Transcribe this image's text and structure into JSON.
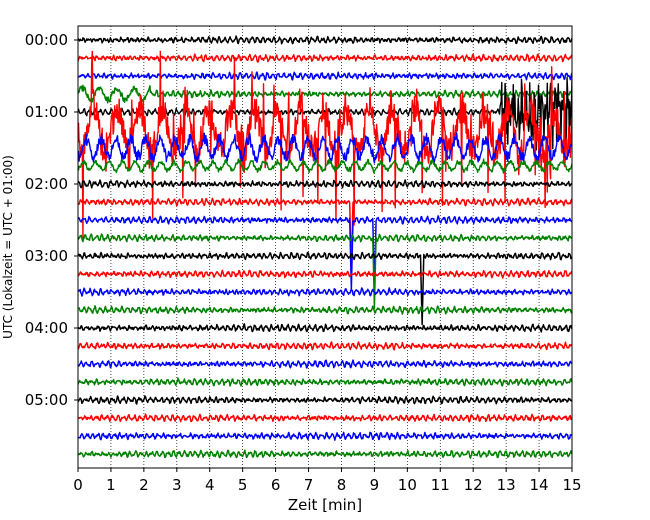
{
  "chart_data": {
    "type": "line",
    "title": "",
    "xlabel": "Zeit  [min]",
    "ylabel": "UTC (Lokalzeit = UTC + 01:00)",
    "xlim": [
      0,
      15
    ],
    "x_ticks": [
      0,
      1,
      2,
      3,
      4,
      5,
      6,
      7,
      8,
      9,
      10,
      11,
      12,
      13,
      14,
      15
    ],
    "y_tick_labels": [
      "00:00",
      "01:00",
      "02:00",
      "03:00",
      "04:00",
      "05:00"
    ],
    "y_tick_rows": [
      0,
      4,
      8,
      12,
      16,
      20
    ],
    "grid": "vertical dotted",
    "row_colors": [
      "#000000",
      "#ff0000",
      "#0000ff",
      "#008000"
    ],
    "rows": 24,
    "row_interval_minutes": 15,
    "events": [
      {
        "row": 4,
        "x_start": 12.8,
        "x_end": 15,
        "note": "strong black burst"
      },
      {
        "row": 5,
        "x_start": 0,
        "x_end": 15,
        "note": "high-amplitude red"
      },
      {
        "row": 6,
        "x_start": 0,
        "x_end": 15,
        "note": "large blue oscillation"
      },
      {
        "row": 7,
        "x_start": 0,
        "x_end": 15,
        "note": "moderate green oscillation"
      }
    ],
    "spikes": [
      {
        "row": 9,
        "x": 8.3
      },
      {
        "row": 10,
        "x": 8.3
      },
      {
        "row": 10,
        "x": 9.0
      },
      {
        "row": 11,
        "x": 9.0
      },
      {
        "row": 12,
        "x": 10.45
      }
    ]
  }
}
